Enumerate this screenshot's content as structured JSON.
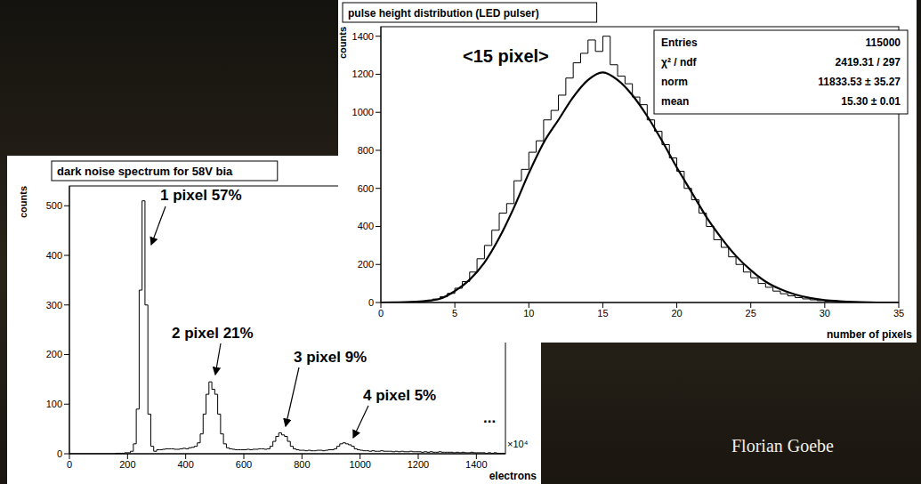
{
  "chart_data": [
    {
      "type": "histogram",
      "title": "dark noise spectrum for 58V bia",
      "x_label": "electrons",
      "x_scale_label": "×10⁴",
      "y_label": "counts",
      "annotations": [
        "1 pixel 57%",
        "2 pixel 21%",
        "3 pixel 9%",
        "4 pixel 5%",
        "..."
      ],
      "bins": [
        0,
        10,
        20,
        30,
        40,
        50,
        60,
        70,
        80,
        90,
        100,
        110,
        120,
        130,
        140,
        150,
        160,
        170,
        180,
        190,
        200,
        210,
        220,
        230,
        240,
        250,
        260,
        270,
        280,
        290,
        300,
        310,
        320,
        330,
        340,
        350,
        360,
        370,
        380,
        390,
        400,
        410,
        420,
        430,
        440,
        450,
        460,
        470,
        480,
        490,
        500,
        510,
        520,
        530,
        540,
        550,
        560,
        570,
        580,
        590,
        600,
        610,
        620,
        630,
        640,
        650,
        660,
        670,
        680,
        690,
        700,
        710,
        720,
        730,
        740,
        750,
        760,
        770,
        780,
        790,
        800,
        810,
        820,
        830,
        840,
        850,
        860,
        870,
        880,
        890,
        900,
        910,
        920,
        930,
        940,
        950,
        960,
        970,
        980,
        990,
        1000,
        1010,
        1020,
        1030,
        1040,
        1050,
        1060,
        1070,
        1080,
        1090,
        1100,
        1110,
        1120,
        1130,
        1140,
        1150,
        1160,
        1170,
        1180,
        1190,
        1200,
        1210,
        1220,
        1230,
        1240,
        1250,
        1260,
        1270,
        1280,
        1290,
        1300,
        1310,
        1320,
        1330,
        1340,
        1350,
        1360,
        1370,
        1380,
        1390,
        1400,
        1410,
        1420,
        1430,
        1440,
        1450,
        1460,
        1470,
        1480,
        1490,
        1500
      ],
      "values": [
        0,
        0,
        0,
        0,
        0,
        0,
        0,
        0,
        0,
        0,
        0,
        0,
        0,
        0,
        0,
        0,
        1,
        1,
        1,
        2,
        2,
        5,
        20,
        90,
        330,
        510,
        300,
        80,
        15,
        5,
        8,
        8,
        9,
        10,
        10,
        10,
        9,
        9,
        10,
        11,
        10,
        12,
        13,
        15,
        22,
        40,
        80,
        120,
        145,
        130,
        120,
        80,
        40,
        20,
        12,
        10,
        9,
        8,
        8,
        8,
        8,
        9,
        8,
        9,
        9,
        10,
        10,
        9,
        10,
        15,
        25,
        35,
        42,
        38,
        35,
        25,
        15,
        10,
        8,
        7,
        7,
        6,
        7,
        6,
        6,
        7,
        7,
        6,
        7,
        8,
        8,
        10,
        15,
        20,
        22,
        20,
        18,
        15,
        10,
        8,
        7,
        6,
        6,
        5,
        6,
        5,
        5,
        6,
        5,
        5,
        5,
        4,
        5,
        4,
        5,
        4,
        4,
        5,
        4,
        4,
        4,
        3,
        4,
        3,
        4,
        3,
        3,
        4,
        3,
        3,
        3,
        3,
        2,
        3,
        2,
        3,
        2,
        2,
        3,
        2,
        2,
        2,
        2,
        1,
        2,
        1,
        2,
        1,
        1,
        1
      ],
      "color": "#000000",
      "xlim": [
        0,
        1500
      ],
      "xticks": [
        0,
        200,
        400,
        600,
        800,
        1000,
        1200,
        1400
      ],
      "ylim": [
        0,
        540
      ],
      "yticks": [
        0,
        100,
        200,
        300,
        400,
        500
      ],
      "grid": false
    },
    {
      "type": "histogram",
      "title": "pulse height distribution (LED pulser)",
      "x_label": "number of pixels",
      "y_label": "counts",
      "annotations": [
        "<15 pixel>"
      ],
      "stats": [
        {
          "label": "Entries",
          "value": "115000"
        },
        {
          "label": "χ² / ndf",
          "value": "2419.31 / 297"
        },
        {
          "label": "norm",
          "value": "11833.53 ± 35.27"
        },
        {
          "label": "mean",
          "value": "15.30 ± 0.01"
        }
      ],
      "bins": [
        0,
        0.5,
        1,
        1.5,
        2,
        2.5,
        3,
        3.5,
        4,
        4.5,
        5,
        5.5,
        6,
        6.5,
        7,
        7.5,
        8,
        8.5,
        9,
        9.5,
        10,
        10.5,
        11,
        11.5,
        12,
        12.5,
        13,
        13.5,
        14,
        14.5,
        15,
        15.5,
        16,
        16.5,
        17,
        17.5,
        18,
        18.5,
        19,
        19.5,
        20,
        20.5,
        21,
        21.5,
        22,
        22.5,
        23,
        23.5,
        24,
        24.5,
        25,
        25.5,
        26,
        26.5,
        27,
        27.5,
        28,
        28.5,
        29,
        29.5,
        30,
        30.5,
        31,
        31.5,
        32,
        32.5,
        33,
        33.5,
        34,
        34.5,
        35
      ],
      "values": [
        0,
        0,
        1,
        2,
        3,
        6,
        10,
        18,
        30,
        48,
        75,
        110,
        160,
        230,
        300,
        380,
        470,
        520,
        640,
        700,
        790,
        850,
        960,
        1010,
        1090,
        1180,
        1260,
        1310,
        1380,
        1320,
        1400,
        1250,
        1190,
        1150,
        1080,
        1040,
        960,
        900,
        830,
        760,
        690,
        600,
        540,
        470,
        400,
        330,
        290,
        240,
        200,
        160,
        130,
        100,
        80,
        60,
        46,
        35,
        26,
        19,
        14,
        10,
        7,
        5,
        3,
        2,
        1,
        1,
        0,
        0,
        0,
        0
      ],
      "color": "#000000",
      "fit": {
        "x": [
          0,
          1,
          2,
          3,
          4,
          5,
          6,
          7,
          8,
          9,
          10,
          11,
          12,
          13,
          14,
          15,
          16,
          17,
          18,
          19,
          20,
          21,
          22,
          23,
          24,
          25,
          26,
          27,
          28,
          29,
          30,
          31,
          32,
          33,
          34,
          35
        ],
        "values": [
          0,
          1,
          3,
          8,
          20,
          60,
          120,
          210,
          340,
          500,
          680,
          840,
          960,
          1080,
          1170,
          1210,
          1170,
          1090,
          980,
          850,
          710,
          580,
          450,
          340,
          245,
          170,
          110,
          70,
          42,
          24,
          13,
          7,
          3,
          1,
          0,
          0
        ],
        "color": "#000000"
      },
      "xlim": [
        0,
        35
      ],
      "xticks": [
        0,
        5,
        10,
        15,
        20,
        25,
        30,
        35
      ],
      "ylim": [
        0,
        1450
      ],
      "yticks": [
        0,
        200,
        400,
        600,
        800,
        1000,
        1200,
        1400
      ],
      "grid": false
    }
  ],
  "footer": "Florian Goebe"
}
